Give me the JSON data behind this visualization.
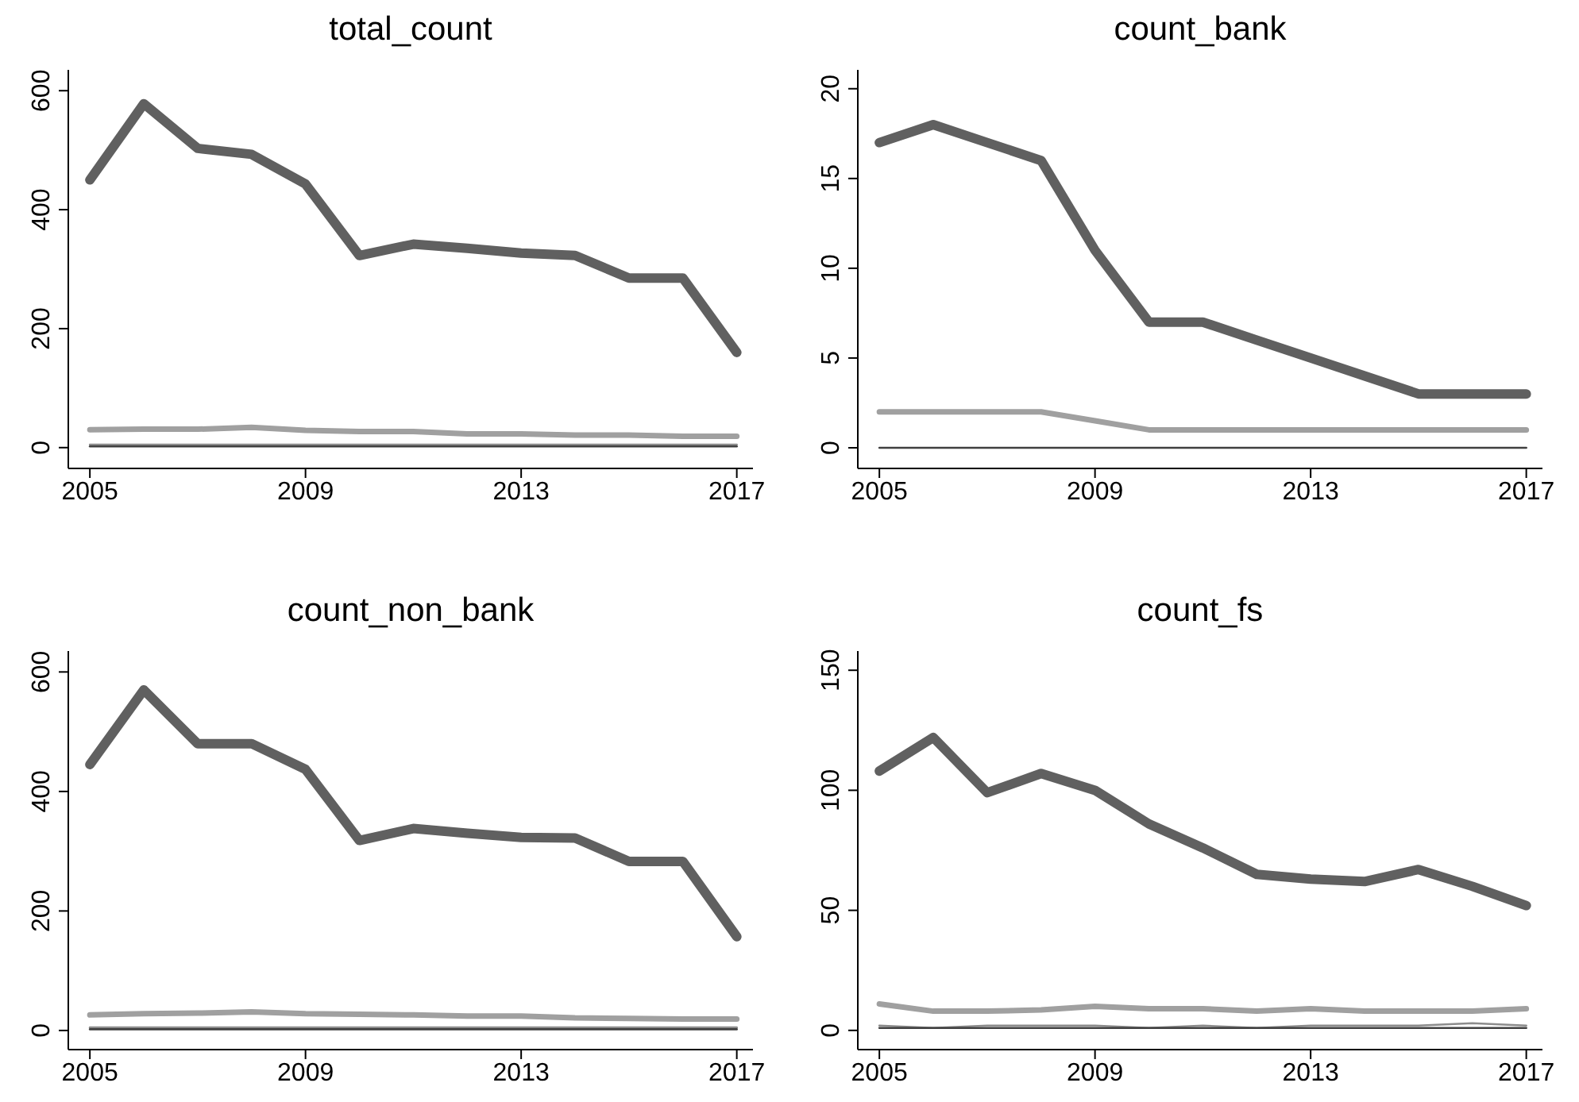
{
  "chart_data": [
    {
      "type": "line",
      "title": "total_count",
      "marker": "none",
      "x": [
        2005,
        2006,
        2007,
        2008,
        2009,
        2010,
        2011,
        2012,
        2013,
        2014,
        2015,
        2016,
        2017
      ],
      "xlim": [
        2004.6,
        2017.3
      ],
      "xticks": [
        2005,
        2009,
        2013,
        2017
      ],
      "ylim": [
        -35,
        635
      ],
      "yticks": [
        0,
        200,
        400,
        600
      ],
      "series": [
        {
          "color": "#606060",
          "values": [
            450,
            578,
            503,
            493,
            443,
            323,
            342,
            335,
            327,
            323,
            285,
            285,
            160
          ]
        },
        {
          "color": "#a0a0a0",
          "values": [
            30,
            31,
            31,
            34,
            29,
            27,
            27,
            23,
            23,
            21,
            21,
            19,
            19
          ]
        },
        {
          "color": "#8c8c8c",
          "values": [
            5,
            5,
            5,
            5,
            5,
            5,
            5,
            5,
            5,
            5,
            5,
            5,
            5
          ]
        },
        {
          "color": "#404040",
          "values": [
            2,
            2,
            2,
            2,
            2,
            2,
            2,
            2,
            2,
            2,
            2,
            2,
            2
          ]
        }
      ]
    },
    {
      "type": "line",
      "title": "count_bank",
      "marker": "none",
      "x": [
        2005,
        2006,
        2007,
        2008,
        2009,
        2010,
        2011,
        2012,
        2013,
        2014,
        2015,
        2016,
        2017
      ],
      "xlim": [
        2004.6,
        2017.3
      ],
      "xticks": [
        2005,
        2009,
        2013,
        2017
      ],
      "ylim": [
        -1.15,
        21.05
      ],
      "yticks": [
        0,
        5,
        10,
        15,
        20
      ],
      "series": [
        {
          "color": "#606060",
          "values": [
            17,
            18,
            17,
            16,
            11,
            7,
            7,
            6,
            5,
            4,
            3,
            3,
            3
          ]
        },
        {
          "color": "#a0a0a0",
          "values": [
            2,
            2,
            2,
            2,
            1.5,
            1,
            1,
            1,
            1,
            1,
            1,
            1,
            1
          ]
        },
        {
          "color": "#8c8c8c",
          "values": [
            null,
            null,
            null,
            null,
            null,
            null,
            null,
            null,
            null,
            null,
            null,
            null,
            null
          ]
        },
        {
          "color": "#404040",
          "values": [
            0,
            0,
            0,
            0,
            0,
            0,
            0,
            0,
            0,
            0,
            0,
            0,
            0
          ]
        }
      ]
    },
    {
      "type": "line",
      "title": "count_non_bank",
      "marker": "none",
      "x": [
        2005,
        2006,
        2007,
        2008,
        2009,
        2010,
        2011,
        2012,
        2013,
        2014,
        2015,
        2016,
        2017
      ],
      "xlim": [
        2004.6,
        2017.3
      ],
      "xticks": [
        2005,
        2009,
        2013,
        2017
      ],
      "ylim": [
        -32,
        635
      ],
      "yticks": [
        0,
        200,
        400,
        600
      ],
      "series": [
        {
          "color": "#606060",
          "values": [
            445,
            570,
            480,
            480,
            437,
            318,
            338,
            330,
            323,
            322,
            283,
            283,
            157
          ]
        },
        {
          "color": "#a0a0a0",
          "values": [
            26,
            28,
            29,
            31,
            28,
            27,
            26,
            24,
            24,
            21,
            20,
            19,
            19
          ]
        },
        {
          "color": "#8c8c8c",
          "values": [
            5,
            5,
            5,
            5,
            5,
            5,
            5,
            5,
            5,
            5,
            5,
            5,
            5
          ]
        },
        {
          "color": "#404040",
          "values": [
            2,
            2,
            2,
            2,
            2,
            2,
            2,
            2,
            2,
            2,
            2,
            2,
            2
          ]
        }
      ]
    },
    {
      "type": "line",
      "title": "count_fs",
      "marker": "none",
      "x": [
        2005,
        2006,
        2007,
        2008,
        2009,
        2010,
        2011,
        2012,
        2013,
        2014,
        2015,
        2016,
        2017
      ],
      "xlim": [
        2004.6,
        2017.3
      ],
      "xticks": [
        2005,
        2009,
        2013,
        2017
      ],
      "ylim": [
        -8,
        158
      ],
      "yticks": [
        0,
        50,
        100,
        150
      ],
      "series": [
        {
          "color": "#606060",
          "values": [
            108,
            122,
            99,
            107,
            100,
            86,
            76,
            65,
            63,
            62,
            67,
            60,
            52
          ]
        },
        {
          "color": "#a0a0a0",
          "values": [
            11,
            8,
            8,
            8.5,
            10,
            9,
            9,
            8,
            9,
            8,
            8,
            8,
            9
          ]
        },
        {
          "color": "#8c8c8c",
          "values": [
            2,
            1,
            2,
            2,
            2,
            1,
            2,
            1,
            2,
            2,
            2,
            3,
            2
          ]
        },
        {
          "color": "#404040",
          "values": [
            1,
            1,
            1,
            1,
            1,
            1,
            1,
            1,
            1,
            1,
            1,
            1,
            1
          ]
        }
      ]
    }
  ]
}
